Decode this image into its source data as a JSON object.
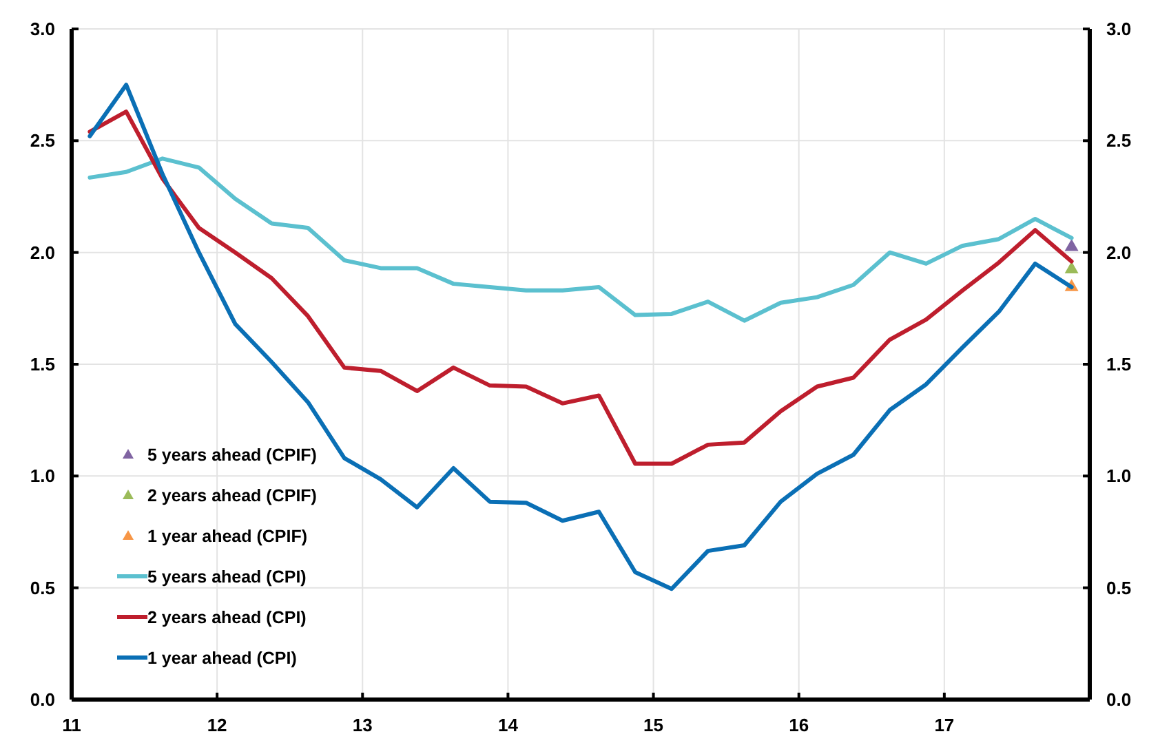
{
  "chart_data": {
    "type": "line",
    "x": [
      11.125,
      11.375,
      11.625,
      11.875,
      12.125,
      12.375,
      12.625,
      12.875,
      13.125,
      13.375,
      13.625,
      13.875,
      14.125,
      14.375,
      14.625,
      14.875,
      15.125,
      15.375,
      15.625,
      15.875,
      16.125,
      16.375,
      16.625,
      16.875,
      17.125,
      17.375,
      17.625,
      17.875
    ],
    "series": [
      {
        "name": "5 years ahead (CPIF)",
        "type": "scatter",
        "marker": "triangle",
        "color": "#8064a2",
        "values": [
          null,
          null,
          null,
          null,
          null,
          null,
          null,
          null,
          null,
          null,
          null,
          null,
          null,
          null,
          null,
          null,
          null,
          null,
          null,
          null,
          null,
          null,
          null,
          null,
          null,
          null,
          null,
          2.03
        ]
      },
      {
        "name": "2 years ahead (CPIF)",
        "type": "scatter",
        "marker": "triangle",
        "color": "#9bbb59",
        "values": [
          null,
          null,
          null,
          null,
          null,
          null,
          null,
          null,
          null,
          null,
          null,
          null,
          null,
          null,
          null,
          null,
          null,
          null,
          null,
          null,
          null,
          null,
          null,
          null,
          null,
          null,
          null,
          1.93
        ]
      },
      {
        "name": "1 year ahead (CPIF)",
        "type": "scatter",
        "marker": "triangle",
        "color": "#f79646",
        "values": [
          null,
          null,
          null,
          null,
          null,
          null,
          null,
          null,
          null,
          null,
          null,
          null,
          null,
          null,
          null,
          null,
          null,
          null,
          null,
          null,
          null,
          null,
          null,
          null,
          null,
          null,
          null,
          1.85
        ]
      },
      {
        "name": "5 years ahead (CPI)",
        "color": "#5bc0cf",
        "values": [
          2.335,
          2.36,
          2.42,
          2.38,
          2.24,
          2.13,
          2.11,
          1.965,
          1.93,
          1.93,
          1.86,
          1.845,
          1.83,
          1.83,
          1.845,
          1.72,
          1.725,
          1.78,
          1.695,
          1.775,
          1.8,
          1.855,
          2.0,
          1.95,
          2.03,
          2.06,
          2.15,
          2.065
        ]
      },
      {
        "name": "2 years ahead (CPI)",
        "color": "#be1e2d",
        "values": [
          2.54,
          2.63,
          2.33,
          2.11,
          2.0,
          1.885,
          1.715,
          1.485,
          1.47,
          1.38,
          1.485,
          1.405,
          1.4,
          1.325,
          1.36,
          1.055,
          1.055,
          1.14,
          1.15,
          1.29,
          1.4,
          1.44,
          1.61,
          1.7,
          1.83,
          1.955,
          2.1,
          1.96
        ]
      },
      {
        "name": "1 year ahead (CPI)",
        "color": "#0a6fb5",
        "values": [
          2.52,
          2.75,
          2.35,
          2.0,
          1.68,
          1.51,
          1.33,
          1.08,
          0.985,
          0.86,
          1.035,
          0.885,
          0.88,
          0.8,
          0.84,
          0.57,
          0.495,
          0.665,
          0.69,
          0.885,
          1.01,
          1.095,
          1.295,
          1.41,
          1.575,
          1.735,
          1.95,
          1.845
        ]
      }
    ],
    "xlim": [
      11,
      18
    ],
    "xticks": [
      11,
      12,
      13,
      14,
      15,
      16,
      17
    ],
    "ylim": [
      0,
      3
    ],
    "yticks": [
      {
        "value": 0,
        "label": "0.0"
      },
      {
        "value": 0.5,
        "label": "0.5"
      },
      {
        "value": 1,
        "label": "1.0"
      },
      {
        "value": 1.5,
        "label": "1.5"
      },
      {
        "value": 2,
        "label": "2.0"
      },
      {
        "value": 2.5,
        "label": "2.5"
      },
      {
        "value": 3,
        "label": "3.0"
      }
    ],
    "y2lim": [
      0,
      3
    ],
    "y2ticks": [
      {
        "value": 0,
        "label": "0.0"
      },
      {
        "value": 0.5,
        "label": "0.5"
      },
      {
        "value": 1,
        "label": "1.0"
      },
      {
        "value": 1.5,
        "label": "1.5"
      },
      {
        "value": 2,
        "label": "2.0"
      },
      {
        "value": 2.5,
        "label": "2.5"
      },
      {
        "value": 3,
        "label": "3.0"
      }
    ],
    "grid": true,
    "legend": "bottom left",
    "line_style": "solid",
    "marker": "none"
  }
}
